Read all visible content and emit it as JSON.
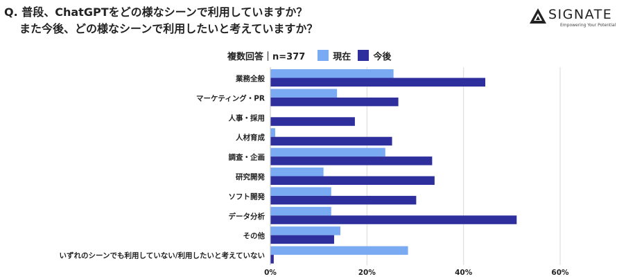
{
  "title": {
    "line1": "Q. 普段、ChatGPTをどの様なシーンで利用していますか？",
    "line2": "また今後、どの様なシーンで利用したいと考えていますか？"
  },
  "logo": {
    "wordmark": "SIGNATE",
    "tagline": "Empowering Your Potential"
  },
  "legend": {
    "caption": "複数回答｜n=377"
  },
  "chart_data": {
    "type": "bar",
    "orientation": "horizontal",
    "title": "",
    "xlabel": "",
    "ylabel": "",
    "xlim": [
      0,
      60
    ],
    "x_ticks": [
      "0%",
      "20%",
      "40%",
      "60%"
    ],
    "x_tick_values": [
      0,
      20,
      40,
      60
    ],
    "grid": true,
    "legend_position": "top",
    "categories": [
      "業務全般",
      "マーケティング・PR",
      "人事・採用",
      "人材育成",
      "調査・企画",
      "研究開発",
      "ソフト開発",
      "データ分析",
      "その他",
      "いずれのシーンでも利用していない/利用したいと考えていない"
    ],
    "series": [
      {
        "name": "現在",
        "color": "#7aaaf2",
        "values": [
          25.5,
          13.8,
          0,
          1.0,
          23.8,
          11.0,
          12.6,
          12.6,
          14.5,
          28.5
        ]
      },
      {
        "name": "今後",
        "color": "#2e2f9c",
        "values": [
          44.5,
          26.5,
          17.5,
          25.2,
          33.5,
          34.0,
          30.2,
          51.0,
          13.2,
          0.7
        ]
      }
    ]
  }
}
